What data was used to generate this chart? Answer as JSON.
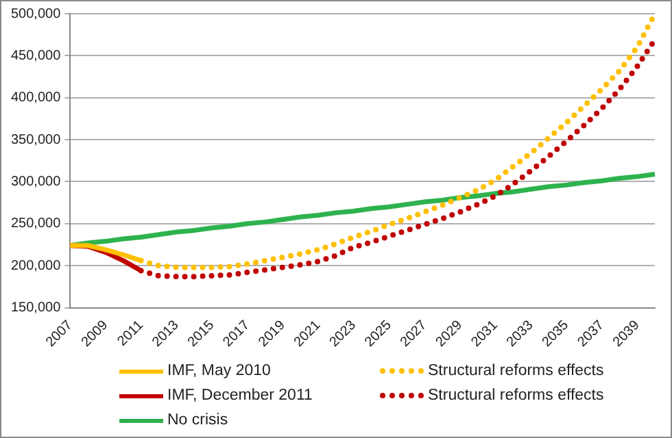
{
  "chart_data": {
    "type": "line",
    "categories": [
      "2007",
      null,
      "2009",
      null,
      "2011",
      null,
      "2013",
      null,
      "2015",
      null,
      "2017",
      null,
      "2019",
      null,
      "2021",
      null,
      "2023",
      null,
      "2025",
      null,
      "2027",
      null,
      "2029",
      null,
      "2031",
      null,
      "2033",
      null,
      "2035",
      null,
      "2037",
      null,
      "2039",
      null
    ],
    "ylim": [
      150000,
      500000
    ],
    "yticks": [
      {
        "value": 150000,
        "label": "150,000"
      },
      {
        "value": 200000,
        "label": "200,000"
      },
      {
        "value": 250000,
        "label": "250,000"
      },
      {
        "value": 300000,
        "label": "300,000"
      },
      {
        "value": 350000,
        "label": "350,000"
      },
      {
        "value": 400000,
        "label": "400,000"
      },
      {
        "value": 450000,
        "label": "450,000"
      },
      {
        "value": 500000,
        "label": "500,000"
      }
    ],
    "grid": "y",
    "legend": "bottom",
    "marker": "none",
    "series": [
      {
        "name": "IMF, May 2010",
        "color": "#ffc000",
        "line_style": "solid",
        "values": [
          224000,
          224000,
          219000,
          213000,
          206000,
          null,
          null,
          null,
          null,
          null,
          null,
          null,
          null,
          null,
          null,
          null,
          null,
          null,
          null,
          null,
          null,
          null,
          null,
          null,
          null,
          null,
          null,
          null,
          null,
          null,
          null,
          null,
          null,
          null
        ]
      },
      {
        "name": "Structural reforms effects",
        "color": "#ffc000",
        "line_style": "dotted",
        "values": [
          null,
          null,
          null,
          null,
          206000,
          200000,
          198000,
          198000,
          198000,
          199000,
          202000,
          206000,
          210000,
          214000,
          219000,
          226000,
          234000,
          241000,
          249000,
          256000,
          264000,
          272000,
          281000,
          290000,
          302000,
          318000,
          334000,
          352000,
          370000,
          390000,
          410000,
          432000,
          460000,
          500000
        ]
      },
      {
        "name": "IMF, December 2011",
        "color": "#c00000",
        "line_style": "solid",
        "values": [
          224000,
          223000,
          216000,
          206000,
          194000,
          null,
          null,
          null,
          null,
          null,
          null,
          null,
          null,
          null,
          null,
          null,
          null,
          null,
          null,
          null,
          null,
          null,
          null,
          null,
          null,
          null,
          null,
          null,
          null,
          null,
          null,
          null,
          null,
          null
        ]
      },
      {
        "name": "Structural reforms effects",
        "color": "#c00000",
        "line_style": "dotted",
        "values": [
          null,
          null,
          null,
          null,
          194000,
          188000,
          187000,
          187000,
          188000,
          189000,
          192000,
          195000,
          198000,
          201000,
          205000,
          212000,
          222000,
          228000,
          235000,
          242000,
          249000,
          256000,
          264000,
          273000,
          283000,
          297000,
          313000,
          330000,
          348000,
          367000,
          387000,
          410000,
          437000,
          469000
        ]
      },
      {
        "name": "No crisis",
        "color": "#2eb24e",
        "line_style": "solid",
        "values": [
          224000,
          227000,
          229000,
          232000,
          234000,
          237000,
          240000,
          242000,
          245000,
          247000,
          250000,
          252000,
          255000,
          258000,
          260000,
          263000,
          265000,
          268000,
          270000,
          273000,
          276000,
          278000,
          281000,
          283000,
          286000,
          288000,
          291000,
          294000,
          296000,
          299000,
          301000,
          304000,
          306000,
          309000
        ]
      }
    ]
  }
}
